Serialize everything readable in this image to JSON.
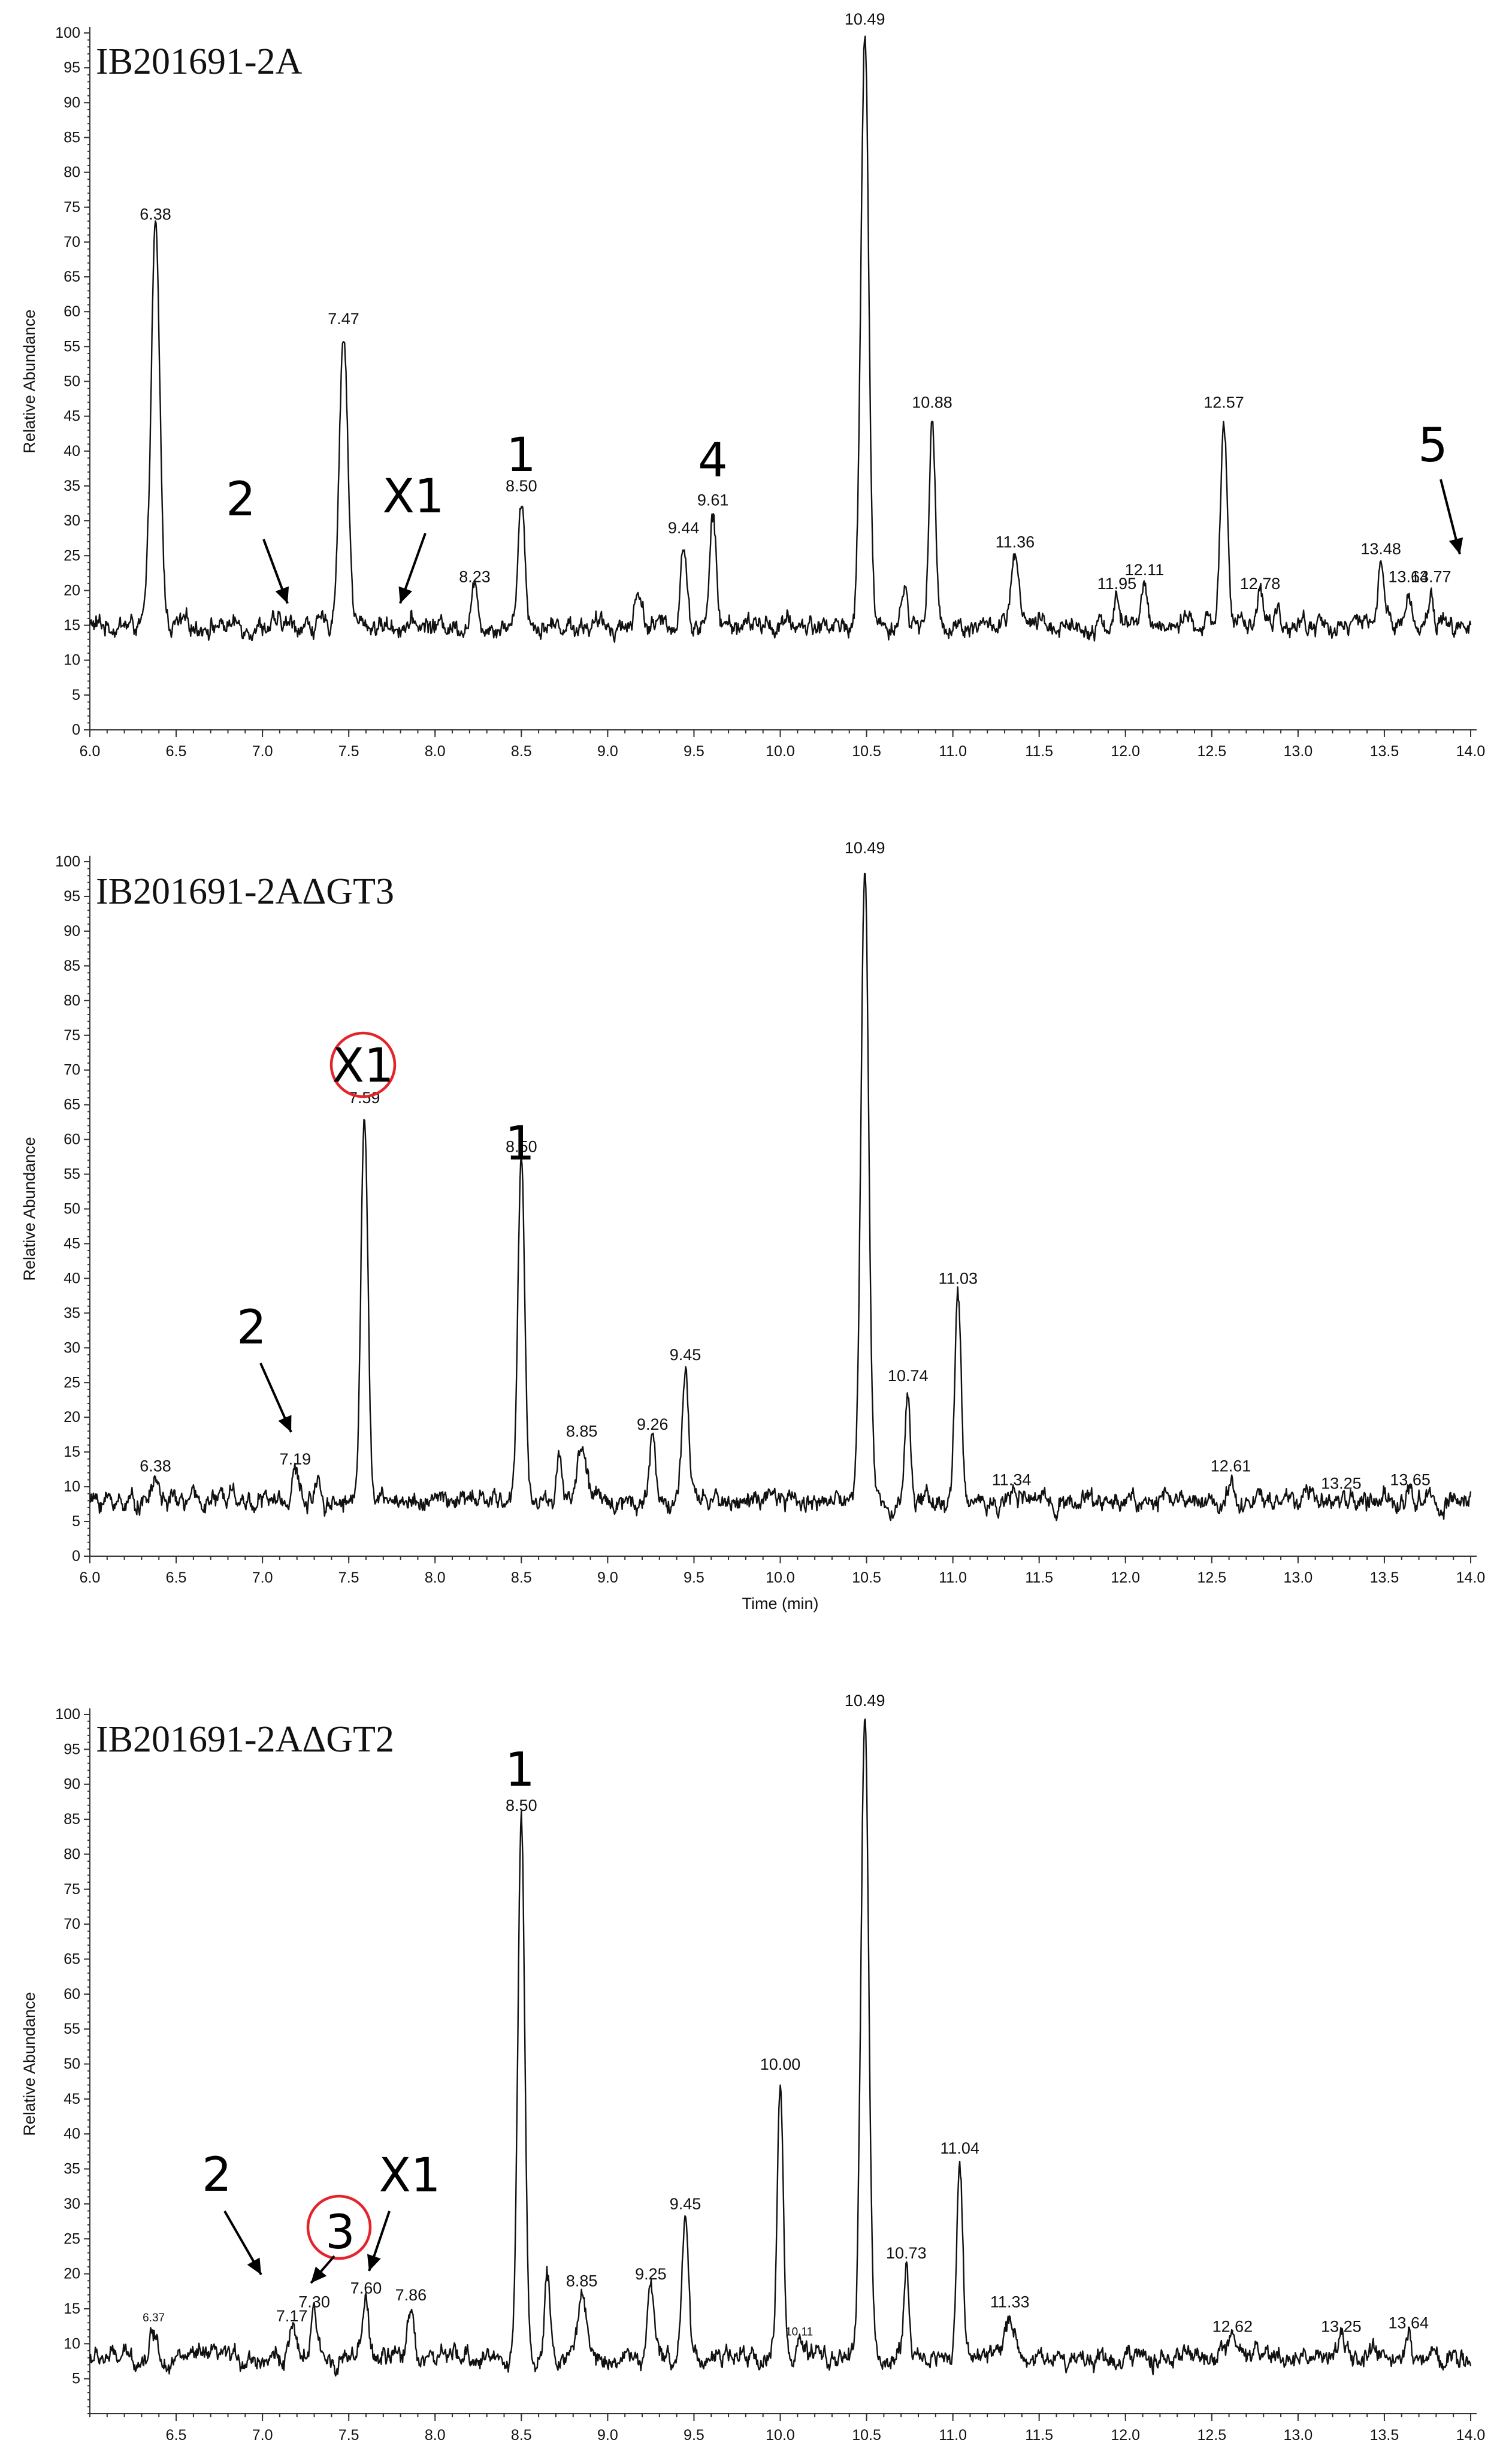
{
  "chart_data": [
    {
      "type": "line",
      "title": "IB201691-2A",
      "ylabel": "Relative Abundance",
      "xlabel": "",
      "xlim": [
        6.0,
        14.0
      ],
      "ylim": [
        0,
        100
      ],
      "grid": false,
      "x_ticks": [
        "6.0",
        "6.5",
        "7.0",
        "7.5",
        "8.0",
        "8.5",
        "9.0",
        "9.5",
        "10.0",
        "10.5",
        "11.0",
        "11.5",
        "12.0",
        "12.5",
        "13.0",
        "13.5",
        "14.0"
      ],
      "y_ticks": [
        "0",
        "5",
        "10",
        "15",
        "20",
        "25",
        "30",
        "35",
        "40",
        "45",
        "50",
        "55",
        "60",
        "65",
        "70",
        "75",
        "80",
        "85",
        "90",
        "95",
        "100"
      ],
      "baseline": 15,
      "series": [
        {
          "peaks": [
            {
              "x": 6.38,
              "y": 72,
              "label": "6.38",
              "width": 0.05
            },
            {
              "x": 7.47,
              "y": 57,
              "label": "7.47",
              "width": 0.05
            },
            {
              "x": 8.23,
              "y": 20,
              "label": "8.23",
              "width": 0.04
            },
            {
              "x": 8.5,
              "y": 33,
              "label": "8.50",
              "width": 0.04
            },
            {
              "x": 9.44,
              "y": 27,
              "label": "9.44",
              "width": 0.035
            },
            {
              "x": 9.61,
              "y": 31,
              "label": "9.61",
              "width": 0.035
            },
            {
              "x": 10.49,
              "y": 100,
              "label": "10.49",
              "width": 0.045
            },
            {
              "x": 10.88,
              "y": 45,
              "label": "10.88",
              "width": 0.035
            },
            {
              "x": 11.36,
              "y": 25,
              "label": "11.36",
              "width": 0.04
            },
            {
              "x": 11.95,
              "y": 19,
              "label": "11.95",
              "width": 0.03
            },
            {
              "x": 12.11,
              "y": 21,
              "label": "12.11",
              "width": 0.035
            },
            {
              "x": 12.57,
              "y": 45,
              "label": "12.57",
              "width": 0.04
            },
            {
              "x": 12.78,
              "y": 19,
              "label": "12.78",
              "width": 0.03
            },
            {
              "x": 13.48,
              "y": 24,
              "label": "13.48",
              "width": 0.04
            },
            {
              "x": 13.64,
              "y": 20,
              "label": "13.64",
              "width": 0.03
            },
            {
              "x": 13.77,
              "y": 20,
              "label": "13.77",
              "width": 0.03
            },
            {
              "x": 9.18,
              "y": 20,
              "width": 0.04
            },
            {
              "x": 10.72,
              "y": 21,
              "width": 0.03
            },
            {
              "x": 12.88,
              "y": 18,
              "width": 0.03
            }
          ]
        }
      ],
      "annotations": [
        {
          "text": "1",
          "x": 8.5
        },
        {
          "text": "4",
          "x": 9.61
        },
        {
          "text": "2",
          "x": 7.15
        },
        {
          "text": "X1",
          "x": 7.8
        },
        {
          "text": "5",
          "x": 13.95
        }
      ]
    },
    {
      "type": "line",
      "title": "IB201691-2AΔGT3",
      "ylabel": "Relative Abundance",
      "xlabel": "Time (min)",
      "xlim": [
        6.0,
        14.0
      ],
      "ylim": [
        0,
        100
      ],
      "grid": false,
      "x_ticks": [
        "6.0",
        "6.5",
        "7.0",
        "7.5",
        "8.0",
        "8.5",
        "9.0",
        "9.5",
        "10.0",
        "10.5",
        "11.0",
        "11.5",
        "12.0",
        "12.5",
        "13.0",
        "13.5",
        "14.0"
      ],
      "y_ticks": [
        "0",
        "5",
        "10",
        "15",
        "20",
        "25",
        "30",
        "35",
        "40",
        "45",
        "50",
        "55",
        "60",
        "65",
        "70",
        "75",
        "80",
        "85",
        "90",
        "95",
        "100"
      ],
      "baseline": 8,
      "series": [
        {
          "peaks": [
            {
              "x": 6.38,
              "y": 11,
              "label": "6.38",
              "width": 0.04
            },
            {
              "x": 7.19,
              "y": 12,
              "label": "7.19",
              "width": 0.04
            },
            {
              "x": 7.59,
              "y": 64,
              "label": "7.59",
              "width": 0.04
            },
            {
              "x": 8.5,
              "y": 57,
              "label": "8.50",
              "width": 0.04
            },
            {
              "x": 8.85,
              "y": 16,
              "label": "8.85",
              "width": 0.05
            },
            {
              "x": 9.26,
              "y": 17,
              "label": "9.26",
              "width": 0.035
            },
            {
              "x": 9.45,
              "y": 27,
              "label": "9.45",
              "width": 0.035
            },
            {
              "x": 10.49,
              "y": 100,
              "label": "10.49",
              "width": 0.045
            },
            {
              "x": 10.74,
              "y": 24,
              "label": "10.74",
              "width": 0.03
            },
            {
              "x": 11.03,
              "y": 38,
              "label": "11.03",
              "width": 0.035
            },
            {
              "x": 11.34,
              "label": "11.34",
              "y": 9,
              "width": 0.03
            },
            {
              "x": 12.61,
              "y": 11,
              "label": "12.61",
              "width": 0.035
            },
            {
              "x": 13.25,
              "label": "13.25",
              "y": 8.5,
              "width": 0.03
            },
            {
              "x": 13.65,
              "label": "13.65",
              "y": 9,
              "width": 0.03
            },
            {
              "x": 6.82,
              "y": 12,
              "width": 0.03
            },
            {
              "x": 7.32,
              "y": 12,
              "width": 0.03
            },
            {
              "x": 8.72,
              "y": 15,
              "width": 0.03
            }
          ]
        }
      ],
      "annotations": [
        {
          "text": "X1",
          "x": 7.59,
          "circled": true
        },
        {
          "text": "1",
          "x": 8.5
        },
        {
          "text": "2",
          "x": 7.22
        }
      ]
    },
    {
      "type": "line",
      "title": "IB201691-2AΔGT2",
      "ylabel": "Relative Abundance",
      "xlabel": "",
      "xlim": [
        6.0,
        14.0
      ],
      "ylim": [
        0,
        100
      ],
      "grid": false,
      "x_ticks": [
        "6.5",
        "7.0",
        "7.5",
        "8.0",
        "8.5",
        "9.0",
        "9.5",
        "10.0",
        "10.5",
        "11.0",
        "11.5",
        "12.0",
        "12.5",
        "13.0",
        "13.5",
        "14.0"
      ],
      "y_ticks": [
        "5",
        "10",
        "15",
        "20",
        "25",
        "30",
        "35",
        "40",
        "45",
        "50",
        "55",
        "60",
        "65",
        "70",
        "75",
        "80",
        "85",
        "90",
        "95",
        "100"
      ],
      "baseline": 8,
      "series": [
        {
          "peaks": [
            {
              "x": 6.37,
              "y": 12,
              "label": "6.37",
              "width": 0.04,
              "small": true
            },
            {
              "x": 7.17,
              "y": 12,
              "label": "7.17",
              "width": 0.035
            },
            {
              "x": 7.3,
              "y": 14,
              "label": "7.30",
              "width": 0.035
            },
            {
              "x": 7.6,
              "y": 16,
              "label": "7.60",
              "width": 0.035
            },
            {
              "x": 7.86,
              "y": 15,
              "label": "7.86",
              "width": 0.04
            },
            {
              "x": 8.5,
              "y": 85,
              "label": "8.50",
              "width": 0.04
            },
            {
              "x": 8.85,
              "y": 17,
              "label": "8.85",
              "width": 0.05
            },
            {
              "x": 9.25,
              "y": 18,
              "label": "9.25",
              "width": 0.035
            },
            {
              "x": 9.45,
              "y": 28,
              "label": "9.45",
              "width": 0.04
            },
            {
              "x": 10.0,
              "y": 48,
              "label": "10.00",
              "width": 0.035
            },
            {
              "x": 10.11,
              "y": 10,
              "label": "10.11",
              "width": 0.03,
              "small": true
            },
            {
              "x": 10.49,
              "y": 100,
              "label": "10.49",
              "width": 0.045
            },
            {
              "x": 10.73,
              "y": 21,
              "label": "10.73",
              "width": 0.03
            },
            {
              "x": 11.04,
              "y": 36,
              "label": "11.04",
              "width": 0.035
            },
            {
              "x": 11.33,
              "y": 14,
              "label": "11.33",
              "width": 0.06
            },
            {
              "x": 12.62,
              "y": 10.5,
              "label": "12.62",
              "width": 0.035
            },
            {
              "x": 13.25,
              "y": 10.5,
              "label": "13.25",
              "width": 0.03
            },
            {
              "x": 13.64,
              "y": 11,
              "label": "13.64",
              "width": 0.03
            },
            {
              "x": 8.65,
              "y": 19,
              "width": 0.03
            }
          ]
        }
      ],
      "annotations": [
        {
          "text": "1",
          "x": 8.5
        },
        {
          "text": "2",
          "x": 7.05
        },
        {
          "text": "3",
          "x": 7.4,
          "circled": true
        },
        {
          "text": "X1",
          "x": 7.75
        }
      ]
    }
  ]
}
